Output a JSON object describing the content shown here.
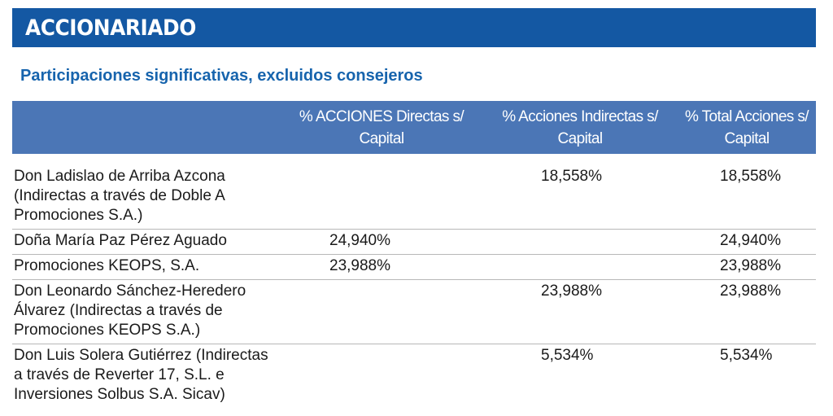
{
  "banner": {
    "title": "ACCIONARIADO"
  },
  "section": {
    "title": "Participaciones significativas, excluidos consejeros"
  },
  "table": {
    "columns": [
      "",
      "% ACCIONES Directas s/ Capital",
      "% Acciones Indirectas s/ Capital",
      "% Total Acciones s/ Capital"
    ],
    "rows": [
      {
        "name": "Don Ladislao de Arriba Azcona (Indirectas a través de Doble A Promociones S.A.)",
        "direct": "",
        "indirect": "18,558%",
        "total": "18,558%"
      },
      {
        "name": "Doña María Paz Pérez Aguado",
        "direct": "24,940%",
        "indirect": "",
        "total": "24,940%"
      },
      {
        "name": "Promociones KEOPS, S.A.",
        "direct": "23,988%",
        "indirect": "",
        "total": "23,988%"
      },
      {
        "name": "Don Leonardo Sánchez-Heredero Álvarez (Indirectas a través de Promociones KEOPS S.A.)",
        "direct": "",
        "indirect": "23,988%",
        "total": "23,988%"
      },
      {
        "name": "Don Luis Solera Gutiérrez (Indirectas a través de Reverter 17, S.L. e Inversiones Solbus S.A. Sicav)",
        "direct": "",
        "indirect": "5,534%",
        "total": "5,534%"
      }
    ]
  },
  "colors": {
    "banner": "#1458a3",
    "section_title": "#1764ad",
    "table_header": "#4b76b6",
    "row_rule": "#b8b8b8"
  }
}
